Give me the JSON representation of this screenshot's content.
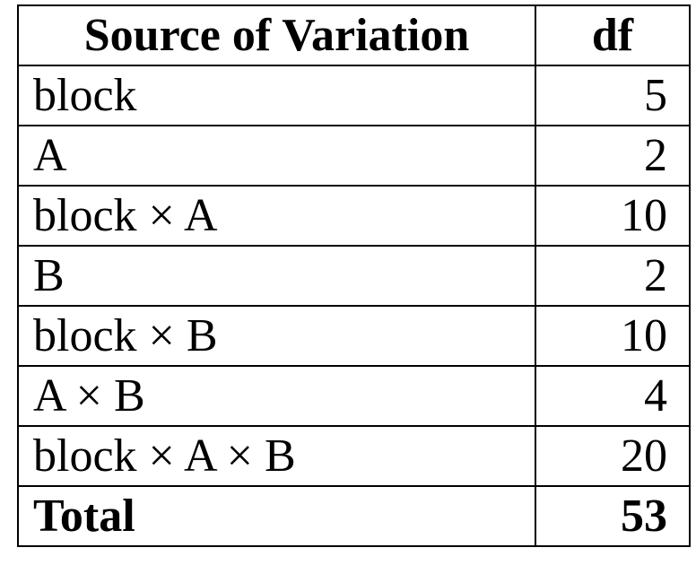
{
  "table": {
    "headers": {
      "source": "Source of Variation",
      "df": "df"
    },
    "rows": [
      {
        "source": "block",
        "df": "5"
      },
      {
        "source": "A",
        "df": "2"
      },
      {
        "source": "block × A",
        "df": "10"
      },
      {
        "source": "B",
        "df": "2"
      },
      {
        "source": "block × B",
        "df": "10"
      },
      {
        "source": "A × B",
        "df": "4"
      },
      {
        "source": "block × A × B",
        "df": "20"
      }
    ],
    "total": {
      "source": "Total",
      "df": "53"
    }
  }
}
